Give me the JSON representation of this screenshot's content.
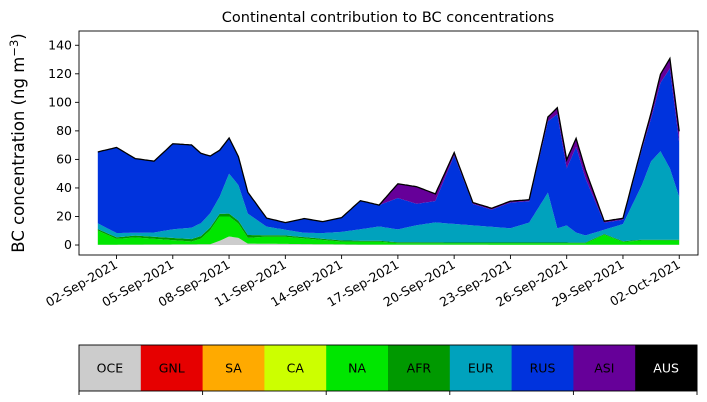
{
  "chart_data": {
    "type": "area",
    "title": "Continental contribution to BC concentrations",
    "ylabel": "BC concentration (ng m",
    "ylabel_sup": "−3",
    "ylabel_close": ")",
    "xlabel": "",
    "xlim": [
      "2021-08-31",
      "2021-10-03"
    ],
    "ylim": [
      -7,
      150
    ],
    "yticks": [
      0,
      20,
      40,
      60,
      80,
      100,
      120,
      140
    ],
    "xticks": [
      {
        "date": "2021-09-02",
        "label": "02-Sep-2021"
      },
      {
        "date": "2021-09-05",
        "label": "05-Sep-2021"
      },
      {
        "date": "2021-09-08",
        "label": "08-Sep-2021"
      },
      {
        "date": "2021-09-11",
        "label": "11-Sep-2021"
      },
      {
        "date": "2021-09-14",
        "label": "14-Sep-2021"
      },
      {
        "date": "2021-09-17",
        "label": "17-Sep-2021"
      },
      {
        "date": "2021-09-20",
        "label": "20-Sep-2021"
      },
      {
        "date": "2021-09-23",
        "label": "23-Sep-2021"
      },
      {
        "date": "2021-09-26",
        "label": "26-Sep-2021"
      },
      {
        "date": "2021-09-29",
        "label": "29-Sep-2021"
      },
      {
        "date": "2021-10-02",
        "label": "02-Oct-2021"
      }
    ],
    "grid": false,
    "legend_position": "colorbar below plot",
    "stack_order": [
      "OCE",
      "GNL",
      "SA",
      "CA",
      "NA",
      "AFR",
      "EUR",
      "RUS",
      "ASI",
      "AUS"
    ],
    "total_line_color": "#000000",
    "series": [
      {
        "name": "OCE",
        "color": "#cccccc",
        "x": [
          "2021-09-01",
          "2021-09-07",
          "2021-09-07T12:00",
          "2021-09-08",
          "2021-09-08T12:00",
          "2021-09-09",
          "2021-09-15",
          "2021-09-30"
        ],
        "values": [
          0.2,
          0.5,
          3,
          6,
          5,
          1,
          0.3,
          0.2
        ]
      },
      {
        "name": "GNL",
        "color": "#e60000",
        "x": [
          "2021-09-01",
          "2021-09-30"
        ],
        "values": [
          0,
          0
        ]
      },
      {
        "name": "SA",
        "color": "#ffaa00",
        "x": [
          "2021-09-01",
          "2021-09-30"
        ],
        "values": [
          0,
          0
        ]
      },
      {
        "name": "CA",
        "color": "#ccff00",
        "x": [
          "2021-09-01",
          "2021-09-30"
        ],
        "values": [
          0,
          0
        ]
      },
      {
        "name": "NA",
        "color": "#00e600",
        "x": [
          "2021-09-01",
          "2021-09-02",
          "2021-09-03",
          "2021-09-04",
          "2021-09-05",
          "2021-09-06",
          "2021-09-06T12:00",
          "2021-09-07",
          "2021-09-07T12:00",
          "2021-09-08",
          "2021-09-08T12:00",
          "2021-09-09",
          "2021-09-10",
          "2021-09-11",
          "2021-09-12",
          "2021-09-13",
          "2021-09-14",
          "2021-09-15",
          "2021-09-16",
          "2021-09-17",
          "2021-09-18",
          "2021-09-19",
          "2021-09-20",
          "2021-09-21",
          "2021-09-22",
          "2021-09-23",
          "2021-09-24",
          "2021-09-25",
          "2021-09-26",
          "2021-09-27",
          "2021-09-28",
          "2021-09-29",
          "2021-09-30"
        ],
        "values": [
          10,
          4,
          5,
          4,
          3,
          2,
          4,
          10,
          17,
          14,
          10,
          4,
          5,
          5,
          4,
          3,
          2,
          2,
          2,
          1,
          1,
          1,
          1,
          1,
          1,
          1,
          1,
          1,
          1,
          1,
          7,
          2,
          3
        ]
      },
      {
        "name": "AFR",
        "color": "#009900",
        "x": [
          "2021-09-01",
          "2021-09-08",
          "2021-09-09",
          "2021-09-10",
          "2021-09-20",
          "2021-09-30"
        ],
        "values": [
          1,
          2,
          2,
          1,
          0.5,
          0.5
        ]
      },
      {
        "name": "EUR",
        "color": "#00a2bd",
        "x": [
          "2021-09-01",
          "2021-09-02",
          "2021-09-03",
          "2021-09-04",
          "2021-09-05",
          "2021-09-06",
          "2021-09-07",
          "2021-09-07T12:00",
          "2021-09-08",
          "2021-09-08T12:00",
          "2021-09-09",
          "2021-09-10",
          "2021-09-11",
          "2021-09-12",
          "2021-09-13",
          "2021-09-14",
          "2021-09-15",
          "2021-09-16",
          "2021-09-17",
          "2021-09-18",
          "2021-09-19",
          "2021-09-20",
          "2021-09-21",
          "2021-09-22",
          "2021-09-23",
          "2021-09-24",
          "2021-09-25",
          "2021-09-25T12:00",
          "2021-09-26",
          "2021-09-26T12:00",
          "2021-09-27",
          "2021-09-28",
          "2021-09-29",
          "2021-09-29T12:00",
          "2021-09-30",
          "2021-09-30T12:00",
          "2021-10-01",
          "2021-10-01T12:00",
          "2021-10-02"
        ],
        "values": [
          4,
          3,
          2,
          3,
          6,
          8,
          10,
          12,
          28,
          25,
          15,
          6,
          4,
          3,
          4,
          6,
          8,
          10,
          9,
          12,
          14,
          13,
          12,
          11,
          10,
          14,
          35,
          10,
          12,
          7,
          5,
          3,
          12,
          25,
          38,
          55,
          62,
          50,
          30
        ]
      },
      {
        "name": "RUS",
        "color": "#0033dd",
        "x": [
          "2021-09-01",
          "2021-09-02",
          "2021-09-03",
          "2021-09-04",
          "2021-09-05",
          "2021-09-06",
          "2021-09-07",
          "2021-09-08",
          "2021-09-09",
          "2021-09-10",
          "2021-09-11",
          "2021-09-12",
          "2021-09-13",
          "2021-09-14",
          "2021-09-15",
          "2021-09-16",
          "2021-09-17",
          "2021-09-18",
          "2021-09-19",
          "2021-09-20",
          "2021-09-21",
          "2021-09-22",
          "2021-09-23",
          "2021-09-24",
          "2021-09-25",
          "2021-09-25T12:00",
          "2021-09-26",
          "2021-09-26T12:00",
          "2021-09-27",
          "2021-09-28",
          "2021-09-29",
          "2021-09-30",
          "2021-09-30T12:00",
          "2021-10-01",
          "2021-10-01T12:00",
          "2021-10-02"
        ],
        "values": [
          50,
          60,
          52,
          50,
          60,
          58,
          40,
          25,
          15,
          6,
          5,
          10,
          8,
          10,
          20,
          15,
          22,
          15,
          15,
          48,
          15,
          12,
          18,
          15,
          50,
          80,
          40,
          60,
          40,
          5,
          3,
          25,
          30,
          48,
          70,
          38
        ]
      },
      {
        "name": "ASI",
        "color": "#660099",
        "x": [
          "2021-09-01",
          "2021-09-16",
          "2021-09-17",
          "2021-09-18",
          "2021-09-19",
          "2021-09-20",
          "2021-09-21",
          "2021-09-24",
          "2021-09-25",
          "2021-09-26",
          "2021-09-27",
          "2021-09-28",
          "2021-09-29",
          "2021-09-30",
          "2021-10-01",
          "2021-10-02"
        ],
        "values": [
          0,
          0,
          10,
          12,
          5,
          2,
          1,
          1,
          3,
          6,
          6,
          1,
          1,
          2,
          6,
          8
        ]
      },
      {
        "name": "AUS",
        "color": "#000000",
        "x": [
          "2021-09-01",
          "2021-09-30"
        ],
        "values": [
          0,
          0
        ]
      }
    ],
    "colorbar": {
      "labels": [
        "OCE",
        "GNL",
        "SA",
        "CA",
        "NA",
        "AFR",
        "EUR",
        "RUS",
        "ASI",
        "AUS"
      ],
      "colors": [
        "#cccccc",
        "#e60000",
        "#ffaa00",
        "#ccff00",
        "#00e600",
        "#009900",
        "#00a2bd",
        "#0033dd",
        "#660099",
        "#000000"
      ],
      "text_colors": [
        "#000000",
        "#000000",
        "#000000",
        "#000000",
        "#000000",
        "#000000",
        "#000000",
        "#000000",
        "#000000",
        "#ffffff"
      ]
    }
  }
}
